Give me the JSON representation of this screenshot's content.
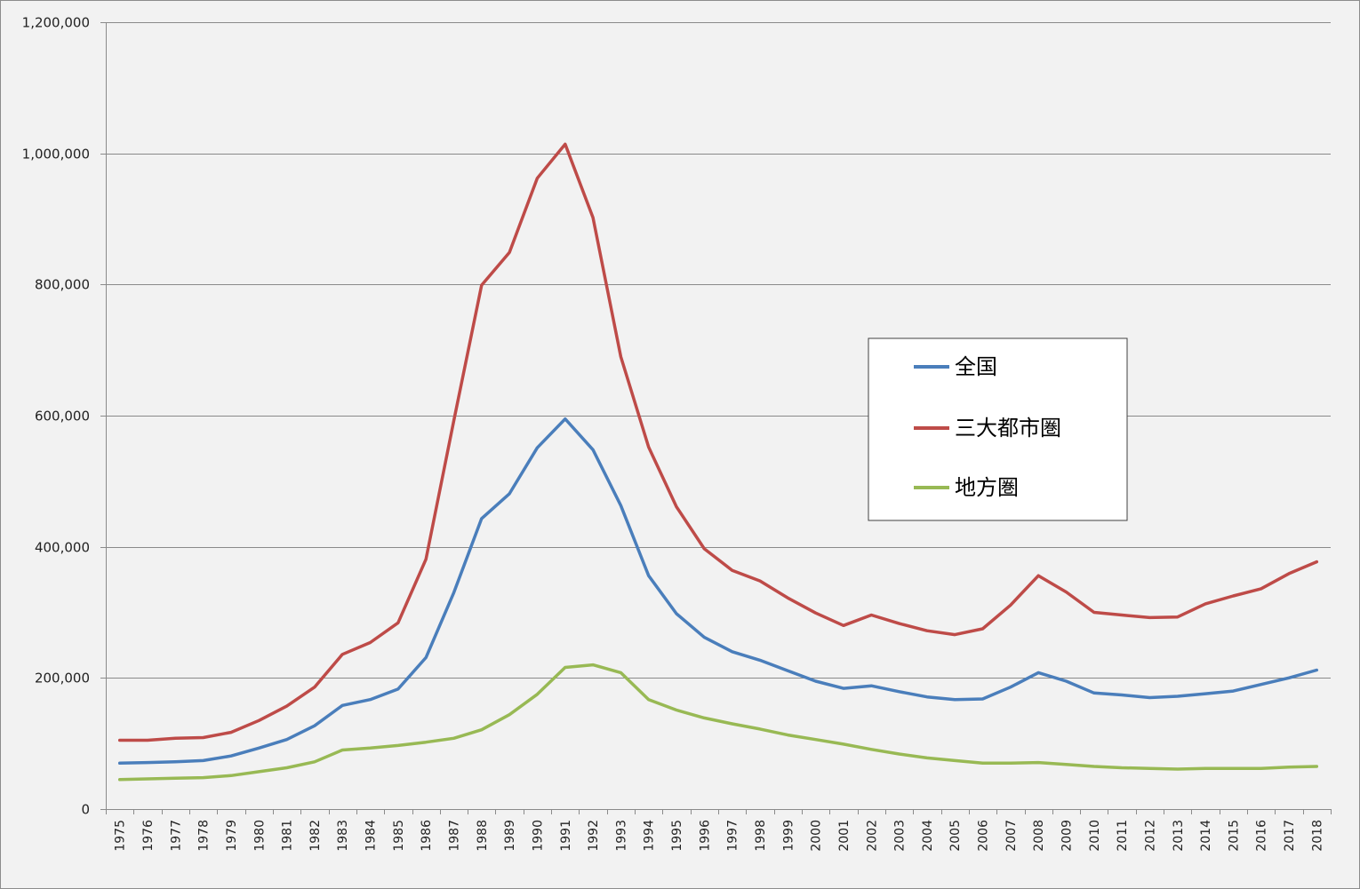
{
  "chart_data": {
    "type": "line",
    "title": "",
    "xlabel": "",
    "ylabel": "",
    "ylim": [
      0,
      1200000
    ],
    "yticks": [
      "0",
      "200,000",
      "400,000",
      "600,000",
      "800,000",
      "1,000,000",
      "1,200,000"
    ],
    "ytick_values": [
      0,
      200000,
      400000,
      600000,
      800000,
      1000000,
      1200000
    ],
    "grid": true,
    "legend_position": "right-center",
    "categories": [
      "1975",
      "1976",
      "1977",
      "1978",
      "1979",
      "1980",
      "1981",
      "1982",
      "1983",
      "1984",
      "1985",
      "1986",
      "1987",
      "1988",
      "1989",
      "1990",
      "1991",
      "1992",
      "1993",
      "1994",
      "1995",
      "1996",
      "1997",
      "1998",
      "1999",
      "2000",
      "2001",
      "2002",
      "2003",
      "2004",
      "2005",
      "2006",
      "2007",
      "2008",
      "2009",
      "2010",
      "2011",
      "2012",
      "2013",
      "2014",
      "2015",
      "2016",
      "2017",
      "2018"
    ],
    "series": [
      {
        "name": "全国",
        "color": "#4a7ebb",
        "values": [
          70000,
          71000,
          72000,
          74000,
          81000,
          93000,
          106000,
          127000,
          158000,
          167000,
          183000,
          231000,
          330000,
          443000,
          481000,
          551000,
          595000,
          548000,
          463000,
          356000,
          298000,
          262000,
          240000,
          227000,
          211000,
          195000,
          184000,
          188000,
          179000,
          171000,
          167000,
          168000,
          186000,
          208000,
          195000,
          177000,
          174000,
          170000,
          172000,
          176000,
          180000,
          190000,
          200000,
          212000
        ]
      },
      {
        "name": "三大都市圏",
        "color": "#be4b48",
        "values": [
          105000,
          105000,
          108000,
          109000,
          117000,
          135000,
          157000,
          186000,
          236000,
          254000,
          284000,
          381000,
          592000,
          799000,
          849000,
          962000,
          1014000,
          902000,
          690000,
          552000,
          461000,
          397000,
          364000,
          348000,
          322000,
          299000,
          280000,
          296000,
          283000,
          272000,
          266000,
          275000,
          311000,
          356000,
          331000,
          300000,
          296000,
          292000,
          293000,
          313000,
          325000,
          336000,
          359000,
          377000
        ]
      },
      {
        "name": "地方圏",
        "color": "#98b954",
        "values": [
          45000,
          46000,
          47000,
          48000,
          51000,
          57000,
          63000,
          72000,
          90000,
          93000,
          97000,
          102000,
          108000,
          121000,
          144000,
          175000,
          216000,
          220000,
          208000,
          167000,
          151000,
          139000,
          130000,
          122000,
          113000,
          106000,
          99000,
          91000,
          84000,
          78000,
          74000,
          70000,
          70000,
          71000,
          68000,
          65000,
          63000,
          62000,
          61000,
          62000,
          62000,
          62000,
          64000,
          65000
        ]
      }
    ]
  }
}
